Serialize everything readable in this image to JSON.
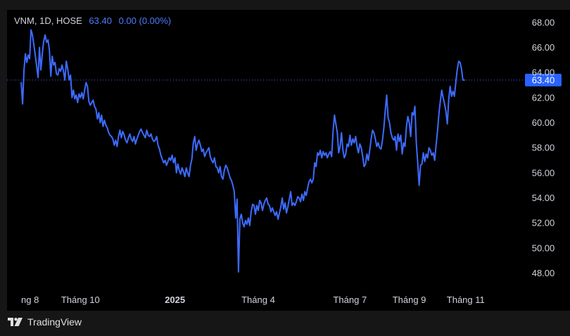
{
  "legend": {
    "symbol": "VNM, 1D, HOSE",
    "price": "63.40",
    "change": "0.00 (0.00%)"
  },
  "brand": {
    "name": "TradingView"
  },
  "colors": {
    "line": "#3d6bff",
    "price_label_bg": "#2962ff",
    "axis_text": "#d1d4dc",
    "chart_bg": "#000000"
  },
  "chart_data": {
    "type": "line",
    "title": "",
    "xlabel": "",
    "ylabel": "",
    "ylim": [
      46.8,
      69.0
    ],
    "y_ticks": [
      "48.00",
      "50.00",
      "52.00",
      "54.00",
      "56.00",
      "58.00",
      "60.00",
      "62.00",
      "64.00",
      "66.00",
      "68.00"
    ],
    "x_ticks": [
      {
        "label": "ng 8",
        "t": 0,
        "bold": false
      },
      {
        "label": "Tháng 10",
        "t": 42,
        "bold": false
      },
      {
        "label": "2025",
        "t": 109,
        "bold": true
      },
      {
        "label": "Tháng 4",
        "t": 168,
        "bold": false
      },
      {
        "label": "Tháng 7",
        "t": 233,
        "bold": false
      },
      {
        "label": "Tháng 9",
        "t": 275,
        "bold": false
      },
      {
        "label": "Tháng 11",
        "t": 315,
        "bold": false
      }
    ],
    "x_range": [
      -10,
      355
    ],
    "grid": false,
    "current_price": 63.4,
    "current_price_label": "63.40",
    "series": [
      {
        "values": [
          63.2,
          61.5,
          64.2,
          65.5,
          64.8,
          65.4,
          65.1,
          67.4,
          67.0,
          66.2,
          65.4,
          64.5,
          63.6,
          66.0,
          64.2,
          65.5,
          66.5,
          67.0,
          66.4,
          66.6,
          65.8,
          63.7,
          65.3,
          64.6,
          64.8,
          63.9,
          63.8,
          64.3,
          64.1,
          64.6,
          64.1,
          63.4,
          64.9,
          64.3,
          63.4,
          63.8,
          62.0,
          62.6,
          61.9,
          62.2,
          61.6,
          62.3,
          62.0,
          62.4,
          61.9,
          62.6,
          63.2,
          62.9,
          61.7,
          61.4,
          61.6,
          61.8,
          61.3,
          61.1,
          60.3,
          60.8,
          60.0,
          60.6,
          59.7,
          60.2,
          59.8,
          59.6,
          59.2,
          59.0,
          58.9,
          58.7,
          58.2,
          58.6,
          58.1,
          58.9,
          59.4,
          58.8,
          59.3,
          59.0,
          58.6,
          58.4,
          58.8,
          59.1,
          58.7,
          58.5,
          58.9,
          58.3,
          58.7,
          59.0,
          59.3,
          59.5,
          59.2,
          59.0,
          58.8,
          59.4,
          59.0,
          58.9,
          59.1,
          58.7,
          58.5,
          58.6,
          58.9,
          58.2,
          57.9,
          57.4,
          57.1,
          56.8,
          57.0,
          56.6,
          56.9,
          57.2,
          57.0,
          57.4,
          56.8,
          57.2,
          56.0,
          56.7,
          56.2,
          55.9,
          56.4,
          56.1,
          55.7,
          56.4,
          56.0,
          55.7,
          56.6,
          57.1,
          58.4,
          58.9,
          57.8,
          58.3,
          58.6,
          58.2,
          57.7,
          57.9,
          57.3,
          57.6,
          57.8,
          58.0,
          57.3,
          57.0,
          56.8,
          57.2,
          56.5,
          56.4,
          56.0,
          56.5,
          55.7,
          55.5,
          56.2,
          56.6,
          56.4,
          56.0,
          55.6,
          55.4,
          55.0,
          54.5,
          52.4,
          53.9,
          48.1,
          52.3,
          52.7,
          52.0,
          51.7,
          52.2,
          51.9,
          52.4,
          51.8,
          52.9,
          53.5,
          53.4,
          52.7,
          53.4,
          53.0,
          53.8,
          53.6,
          53.0,
          53.5,
          53.8,
          54.0,
          53.5,
          53.4,
          52.9,
          53.2,
          52.9,
          52.6,
          52.9,
          52.3,
          52.8,
          53.3,
          54.0,
          53.1,
          53.6,
          52.8,
          53.3,
          53.9,
          54.5,
          53.4,
          53.6,
          53.4,
          53.7,
          54.1,
          54.0,
          53.7,
          54.3,
          53.8,
          54.5,
          54.2,
          54.8,
          55.3,
          55.5,
          55.2,
          55.5,
          56.8,
          56.5,
          57.6,
          57.4,
          57.8,
          57.2,
          57.7,
          57.4,
          57.6,
          57.2,
          57.5,
          57.7,
          57.3,
          59.3,
          60.6,
          59.9,
          59.2,
          57.6,
          58.1,
          59.2,
          57.8,
          57.2,
          57.5,
          58.3,
          58.1,
          59.0,
          58.2,
          58.7,
          58.4,
          58.9,
          58.1,
          57.6,
          58.3,
          58.0,
          57.3,
          56.5,
          56.7,
          57.5,
          57.0,
          57.8,
          58.7,
          59.4,
          59.2,
          58.7,
          58.1,
          58.4,
          58.0,
          57.9,
          58.6,
          59.6,
          61.0,
          62.2,
          60.4,
          60.0,
          59.2,
          58.8,
          58.6,
          58.9,
          57.8,
          59.1,
          58.5,
          59.0,
          57.5,
          58.4,
          58.1,
          59.7,
          60.5,
          60.0,
          58.9,
          60.8,
          60.6,
          61.3,
          58.4,
          56.8,
          55.0,
          56.6,
          56.7,
          57.6,
          56.9,
          57.5,
          57.2,
          58.0,
          57.8,
          57.4,
          57.6,
          57.0,
          58.2,
          59.3,
          60.7,
          61.7,
          62.6,
          62.0,
          61.5,
          60.9,
          59.9,
          61.9,
          62.9,
          62.1,
          62.5,
          62.1,
          63.2,
          64.2,
          64.9,
          64.8,
          64.3,
          63.4,
          63.4
        ]
      }
    ]
  }
}
